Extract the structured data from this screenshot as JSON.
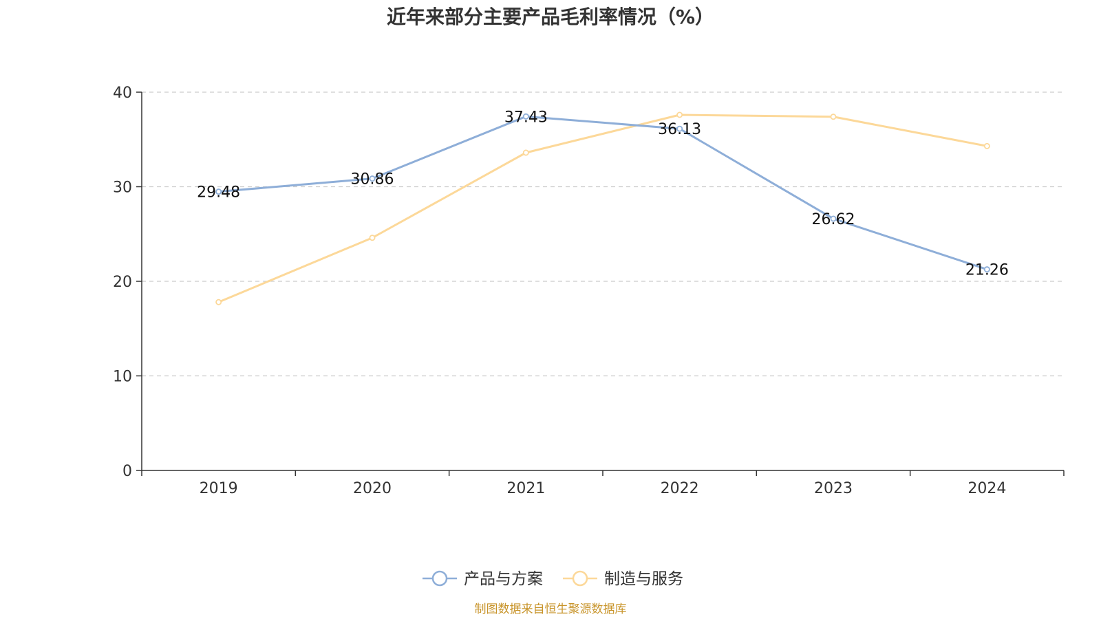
{
  "chart_data": {
    "type": "line",
    "title": "近年来部分主要产品毛利率情况（%）",
    "categories": [
      "2019",
      "2020",
      "2021",
      "2022",
      "2023",
      "2024"
    ],
    "ylim": [
      0,
      40
    ],
    "yticks": [
      0,
      10,
      20,
      30,
      40
    ],
    "grid": true,
    "legend_position": "bottom",
    "series": [
      {
        "name": "产品与方案",
        "color": "#8eaed8",
        "values": [
          29.48,
          30.86,
          37.43,
          36.13,
          26.62,
          21.26
        ],
        "labels": [
          "29.48",
          "30.86",
          "37.43",
          "36.13",
          "26.62",
          "21.26"
        ]
      },
      {
        "name": "制造与服务",
        "color": "#fcd899",
        "values": [
          17.8,
          24.6,
          33.6,
          37.6,
          37.4,
          34.3
        ]
      }
    ]
  },
  "source": {
    "text": "制图数据来自恒生聚源数据库",
    "color": "#c8942a"
  }
}
